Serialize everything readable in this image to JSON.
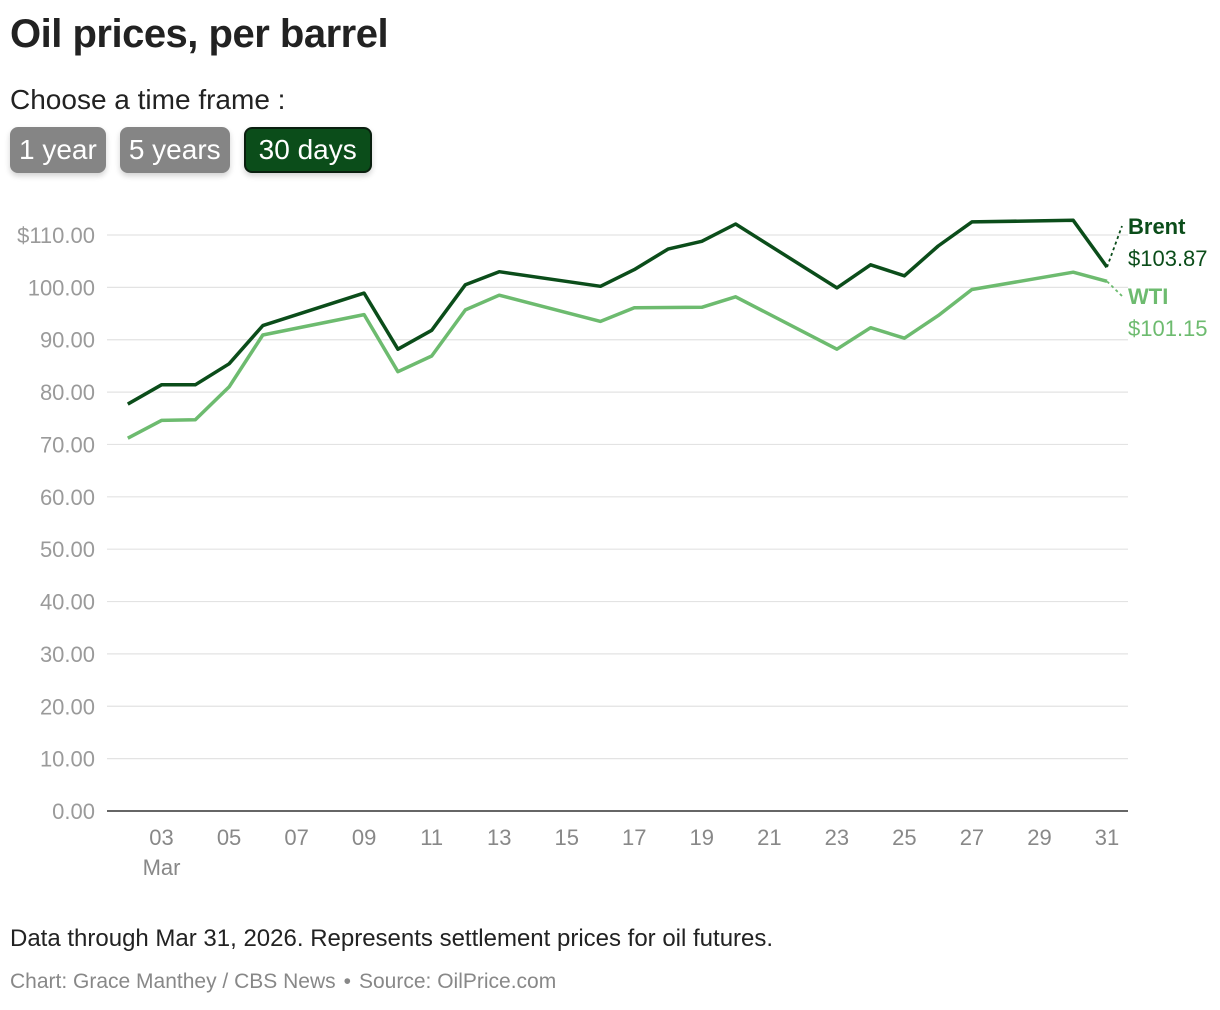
{
  "header": {
    "title": "Oil prices, per barrel",
    "prompt": "Choose a time frame :"
  },
  "buttons": [
    {
      "label": "1 year",
      "active": false
    },
    {
      "label": "5 years",
      "active": false
    },
    {
      "label": "30 days",
      "active": true
    }
  ],
  "colors": {
    "brent": "#0b4d1a",
    "wti": "#6dbb6f",
    "button_inactive": "#858585",
    "button_active": "#0b4d1a"
  },
  "chart_data": {
    "type": "line",
    "ylim": [
      0,
      110
    ],
    "yticks": [
      {
        "value": 110,
        "label": "$110.00"
      },
      {
        "value": 100,
        "label": "100.00"
      },
      {
        "value": 90,
        "label": "90.00"
      },
      {
        "value": 80,
        "label": "80.00"
      },
      {
        "value": 70,
        "label": "70.00"
      },
      {
        "value": 60,
        "label": "60.00"
      },
      {
        "value": 50,
        "label": "50.00"
      },
      {
        "value": 40,
        "label": "40.00"
      },
      {
        "value": 30,
        "label": "30.00"
      },
      {
        "value": 20,
        "label": "20.00"
      },
      {
        "value": 10,
        "label": "10.00"
      },
      {
        "value": 0,
        "label": "0.00"
      }
    ],
    "xlim": [
      "2026-03-01",
      "2026-03-31"
    ],
    "xticks": [
      {
        "date": "2026-03-03",
        "label": "03",
        "sublabel": "Mar"
      },
      {
        "date": "2026-03-05",
        "label": "05"
      },
      {
        "date": "2026-03-07",
        "label": "07"
      },
      {
        "date": "2026-03-09",
        "label": "09"
      },
      {
        "date": "2026-03-11",
        "label": "11"
      },
      {
        "date": "2026-03-13",
        "label": "13"
      },
      {
        "date": "2026-03-15",
        "label": "15"
      },
      {
        "date": "2026-03-17",
        "label": "17"
      },
      {
        "date": "2026-03-19",
        "label": "19"
      },
      {
        "date": "2026-03-21",
        "label": "21"
      },
      {
        "date": "2026-03-23",
        "label": "23"
      },
      {
        "date": "2026-03-25",
        "label": "25"
      },
      {
        "date": "2026-03-27",
        "label": "27"
      },
      {
        "date": "2026-03-29",
        "label": "29"
      },
      {
        "date": "2026-03-31",
        "label": "31"
      }
    ],
    "grid": true,
    "series": [
      {
        "name": "Brent",
        "end_label": "$103.87",
        "color": "#0b4d1a",
        "points": [
          {
            "x": "2026-03-02",
            "y": 77.7
          },
          {
            "x": "2026-03-03",
            "y": 81.4
          },
          {
            "x": "2026-03-04",
            "y": 81.4
          },
          {
            "x": "2026-03-05",
            "y": 85.4
          },
          {
            "x": "2026-03-06",
            "y": 92.7
          },
          {
            "x": "2026-03-09",
            "y": 98.9
          },
          {
            "x": "2026-03-10",
            "y": 88.2
          },
          {
            "x": "2026-03-11",
            "y": 91.8
          },
          {
            "x": "2026-03-12",
            "y": 100.5
          },
          {
            "x": "2026-03-13",
            "y": 103.0
          },
          {
            "x": "2026-03-16",
            "y": 100.2
          },
          {
            "x": "2026-03-17",
            "y": 103.4
          },
          {
            "x": "2026-03-18",
            "y": 107.3
          },
          {
            "x": "2026-03-19",
            "y": 108.8
          },
          {
            "x": "2026-03-20",
            "y": 112.1
          },
          {
            "x": "2026-03-23",
            "y": 99.9
          },
          {
            "x": "2026-03-24",
            "y": 104.3
          },
          {
            "x": "2026-03-25",
            "y": 102.2
          },
          {
            "x": "2026-03-26",
            "y": 107.9
          },
          {
            "x": "2026-03-27",
            "y": 112.5
          },
          {
            "x": "2026-03-30",
            "y": 112.8
          },
          {
            "x": "2026-03-31",
            "y": 103.87
          }
        ]
      },
      {
        "name": "WTI",
        "end_label": "$101.15",
        "color": "#6dbb6f",
        "points": [
          {
            "x": "2026-03-02",
            "y": 71.2
          },
          {
            "x": "2026-03-03",
            "y": 74.6
          },
          {
            "x": "2026-03-04",
            "y": 74.7
          },
          {
            "x": "2026-03-05",
            "y": 81.0
          },
          {
            "x": "2026-03-06",
            "y": 90.9
          },
          {
            "x": "2026-03-09",
            "y": 94.8
          },
          {
            "x": "2026-03-10",
            "y": 83.9
          },
          {
            "x": "2026-03-11",
            "y": 86.9
          },
          {
            "x": "2026-03-12",
            "y": 95.7
          },
          {
            "x": "2026-03-13",
            "y": 98.5
          },
          {
            "x": "2026-03-16",
            "y": 93.5
          },
          {
            "x": "2026-03-17",
            "y": 96.1
          },
          {
            "x": "2026-03-19",
            "y": 96.2
          },
          {
            "x": "2026-03-20",
            "y": 98.2
          },
          {
            "x": "2026-03-23",
            "y": 88.2
          },
          {
            "x": "2026-03-24",
            "y": 92.3
          },
          {
            "x": "2026-03-25",
            "y": 90.3
          },
          {
            "x": "2026-03-26",
            "y": 94.6
          },
          {
            "x": "2026-03-27",
            "y": 99.6
          },
          {
            "x": "2026-03-30",
            "y": 102.9
          },
          {
            "x": "2026-03-31",
            "y": 101.15
          }
        ]
      }
    ]
  },
  "footer": {
    "note": "Data through Mar 31, 2026. Represents settlement prices for oil futures.",
    "credit": "Chart: Grace Manthey / CBS News",
    "separator": "•",
    "source": "Source: OilPrice.com"
  }
}
